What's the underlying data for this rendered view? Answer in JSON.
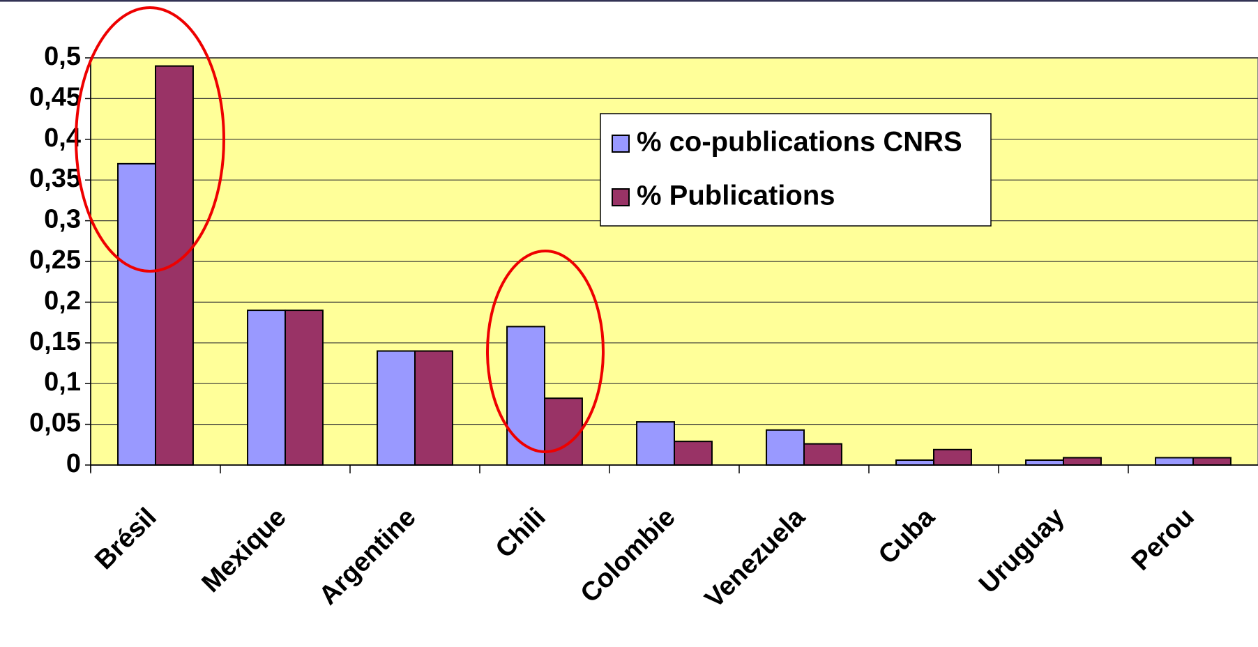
{
  "chart_data": {
    "type": "bar",
    "categories": [
      "Brésil",
      "Mexique",
      "Argentine",
      "Chili",
      "Colombie",
      "Venezuela",
      "Cuba",
      "Uruguay",
      "Perou"
    ],
    "series": [
      {
        "name": "% co-publications CNRS",
        "color": "#9999ff",
        "values": [
          0.37,
          0.19,
          0.14,
          0.17,
          0.053,
          0.043,
          0.006,
          0.006,
          0.009
        ]
      },
      {
        "name": "% Publications",
        "color": "#993366",
        "values": [
          0.49,
          0.19,
          0.14,
          0.082,
          0.029,
          0.026,
          0.019,
          0.009,
          0.009
        ]
      }
    ],
    "ylim": [
      0,
      0.5
    ],
    "yticks": [
      0,
      {
        "value": 0.05,
        "label": "0,05"
      },
      {
        "value": 0.1,
        "label": "0,1"
      },
      {
        "value": 0.15,
        "label": "0,15"
      },
      {
        "value": 0.2,
        "label": "0,2"
      },
      {
        "value": 0.25,
        "label": "0,25"
      },
      {
        "value": 0.3,
        "label": "0,3"
      },
      {
        "value": 0.35,
        "label": "0,35"
      },
      {
        "value": 0.4,
        "label": "0,4"
      },
      {
        "value": 0.45,
        "label": "0,45"
      },
      {
        "value": 0.5,
        "label": "0,5"
      }
    ],
    "grid": true,
    "background": "#ffff99",
    "legend": "upper-right"
  }
}
